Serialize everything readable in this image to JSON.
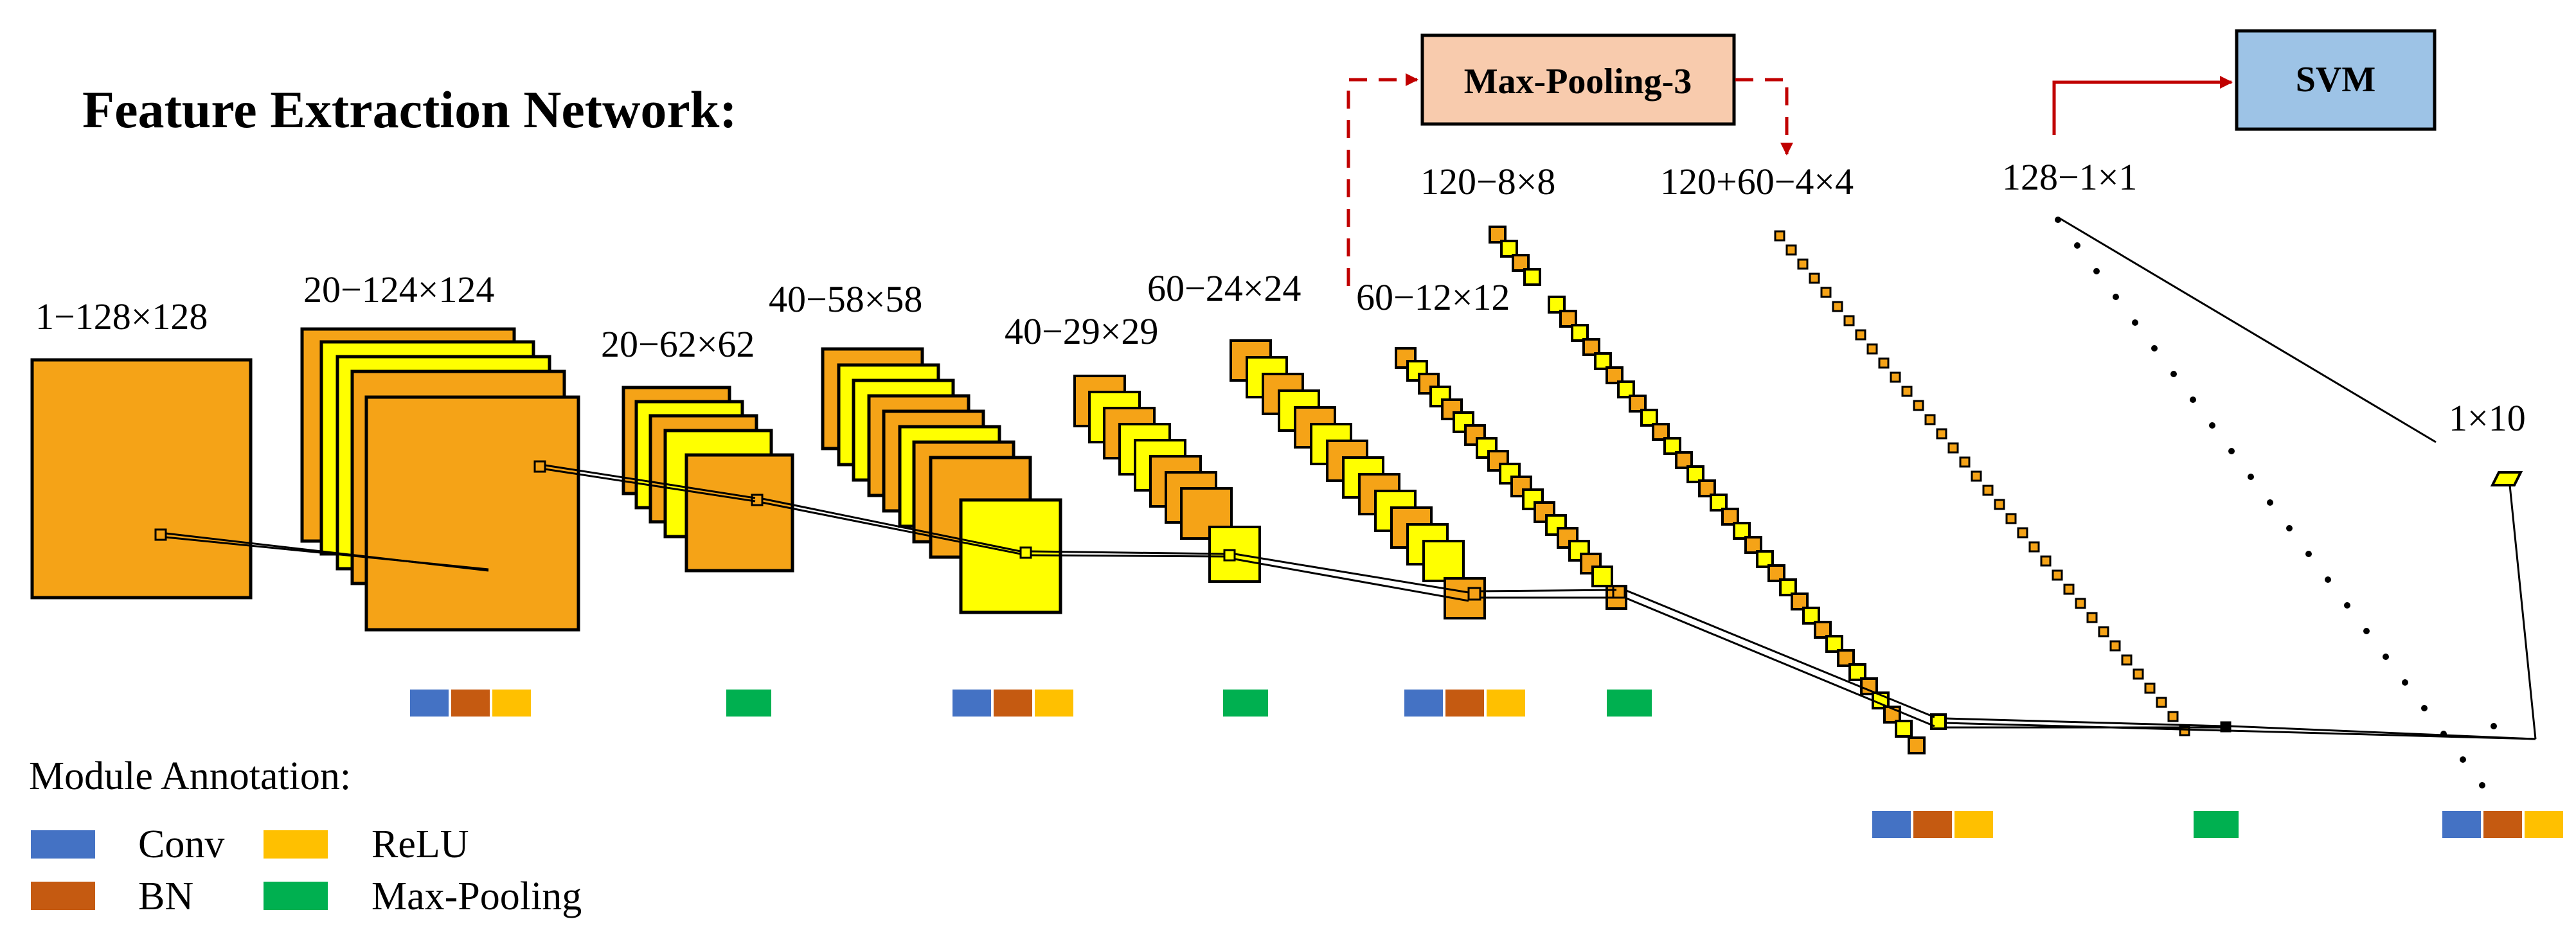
{
  "title": "Feature Extraction Network:",
  "layer_labels": {
    "input": "1−128×128",
    "conv1": "20−124×124",
    "pool1": "20−62×62",
    "conv2": "40−58×58",
    "pool2": "40−29×29",
    "conv3": "60−24×24",
    "pool3": "60−12×12",
    "conv4": "120−8×8",
    "concat": "120+60−4×4",
    "fc": "128−1×1",
    "output": "1×10"
  },
  "boxes": {
    "max_pooling_3": "Max-Pooling-3",
    "svm": "SVM"
  },
  "legend": {
    "title": "Module Annotation:",
    "conv": "Conv",
    "bn": "BN",
    "relu": "ReLU",
    "max_pooling": "Max-Pooling"
  },
  "colors": {
    "conv": "#4472c4",
    "bn": "#c55a11",
    "relu": "#ffc000",
    "max_pooling": "#00b050",
    "feature_orange": "#f5a317",
    "feature_yellow": "#ffff00",
    "max_pooling_box": "#f8cbad",
    "svm_box": "#9dc3e6",
    "arrow_red": "#c00000"
  }
}
